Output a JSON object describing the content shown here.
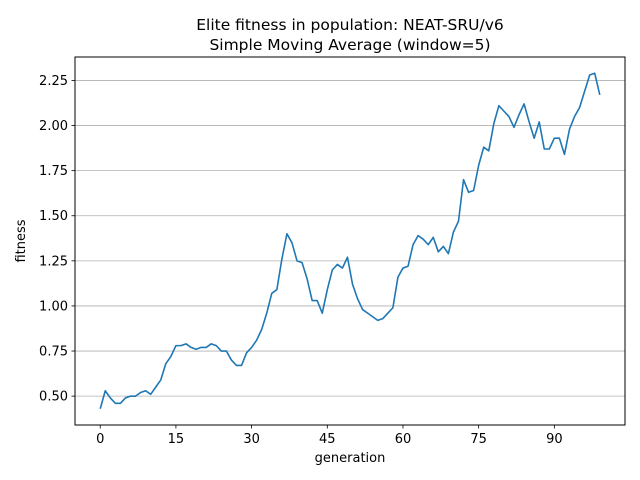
{
  "chart_data": {
    "type": "line",
    "title_line1": "Elite fitness in population: NEAT-SRU/v6",
    "title_line2": "Simple Moving Average (window=5)",
    "xlabel": "generation",
    "ylabel": "fitness",
    "xlim": [
      -5,
      104
    ],
    "ylim": [
      0.34,
      2.38
    ],
    "xticks": [
      0,
      15,
      30,
      45,
      60,
      75,
      90
    ],
    "yticks": [
      0.5,
      0.75,
      1.0,
      1.25,
      1.5,
      1.75,
      2.0,
      2.25
    ],
    "ytick_labels": [
      "0.50",
      "0.75",
      "1.00",
      "1.25",
      "1.50",
      "1.75",
      "2.00",
      "2.25"
    ],
    "grid": "horizontal",
    "line_color": "#1f77b4",
    "series": [
      {
        "x": [
          0,
          1,
          2,
          3,
          4,
          5,
          6,
          7,
          8,
          9,
          10,
          11,
          12,
          13,
          14,
          15,
          16,
          17,
          18,
          19,
          20,
          21,
          22,
          23,
          24,
          25,
          26,
          27,
          28,
          29,
          30,
          31,
          32,
          33,
          34,
          35,
          36,
          37,
          38,
          39,
          40,
          41,
          42,
          43,
          44,
          45,
          46,
          47,
          48,
          49,
          50,
          51,
          52,
          53,
          54,
          55,
          56,
          57,
          58,
          59,
          60,
          61,
          62,
          63,
          64,
          65,
          66,
          67,
          68,
          69,
          70,
          71,
          72,
          73,
          74,
          75,
          76,
          77,
          78,
          79,
          80,
          81,
          82,
          83,
          84,
          85,
          86,
          87,
          88,
          89,
          90,
          91,
          92,
          93,
          94,
          95,
          96,
          97,
          98,
          99
        ],
        "values": [
          0.43,
          0.53,
          0.49,
          0.46,
          0.46,
          0.49,
          0.5,
          0.5,
          0.52,
          0.53,
          0.51,
          0.55,
          0.59,
          0.68,
          0.72,
          0.78,
          0.78,
          0.79,
          0.77,
          0.76,
          0.77,
          0.77,
          0.79,
          0.78,
          0.75,
          0.75,
          0.7,
          0.67,
          0.67,
          0.74,
          0.77,
          0.81,
          0.87,
          0.96,
          1.07,
          1.09,
          1.26,
          1.4,
          1.35,
          1.25,
          1.24,
          1.15,
          1.03,
          1.03,
          0.96,
          1.09,
          1.2,
          1.23,
          1.21,
          1.27,
          1.12,
          1.04,
          0.98,
          0.96,
          0.94,
          0.92,
          0.93,
          0.96,
          0.99,
          1.16,
          1.21,
          1.22,
          1.34,
          1.39,
          1.37,
          1.34,
          1.38,
          1.3,
          1.33,
          1.29,
          1.41,
          1.47,
          1.7,
          1.63,
          1.64,
          1.78,
          1.88,
          1.86,
          2.01,
          2.11,
          2.08,
          2.05,
          1.99,
          2.06,
          2.12,
          2.02,
          1.93,
          2.02,
          1.87,
          1.87,
          1.93,
          1.93,
          1.84,
          1.98,
          2.05,
          2.1,
          2.19,
          2.28,
          2.29,
          2.17
        ]
      }
    ]
  }
}
